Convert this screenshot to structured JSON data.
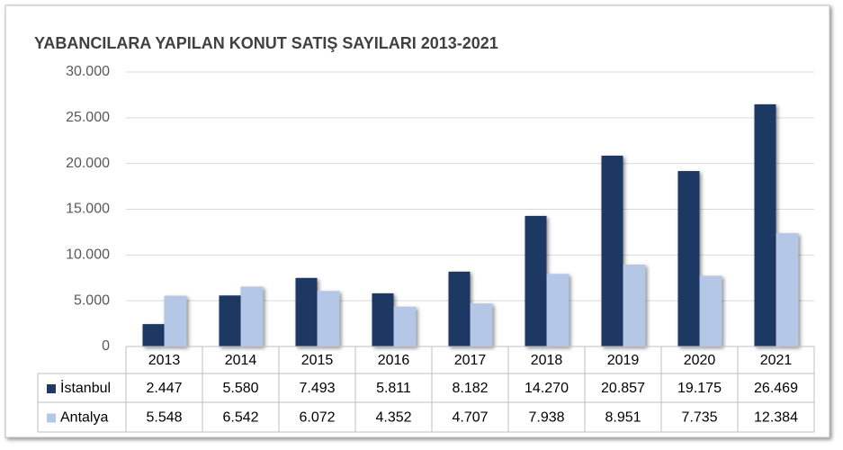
{
  "chart_data": {
    "type": "bar",
    "title": "YABANCILARA YAPILAN KONUT SATIŞ SAYILARI 2013-2021",
    "categories": [
      "2013",
      "2014",
      "2015",
      "2016",
      "2017",
      "2018",
      "2019",
      "2020",
      "2021"
    ],
    "series": [
      {
        "name": "İstanbul",
        "color": "#1f3864",
        "values": [
          2447,
          5580,
          7493,
          5811,
          8182,
          14270,
          20857,
          19175,
          26469
        ],
        "value_labels": [
          "2.447",
          "5.580",
          "7.493",
          "5.811",
          "8.182",
          "14.270",
          "20.857",
          "19.175",
          "26.469"
        ]
      },
      {
        "name": "Antalya",
        "color": "#b4c7e7",
        "values": [
          5548,
          6542,
          6072,
          4352,
          4707,
          7938,
          8951,
          7735,
          12384
        ],
        "value_labels": [
          "5.548",
          "6.542",
          "6.072",
          "4.352",
          "4.707",
          "7.938",
          "8.951",
          "7.735",
          "12.384"
        ]
      }
    ],
    "ylim": [
      0,
      30000
    ],
    "yticks": [
      0,
      {
        "value": 5000,
        "label": "5.000"
      },
      {
        "value": 10000,
        "label": "10.000"
      },
      {
        "value": 15000,
        "label": "15.000"
      },
      {
        "value": 20000,
        "label": "20.000"
      },
      {
        "value": 25000,
        "label": "25.000"
      },
      {
        "value": 30000,
        "label": "30.000"
      }
    ],
    "grid": true
  }
}
